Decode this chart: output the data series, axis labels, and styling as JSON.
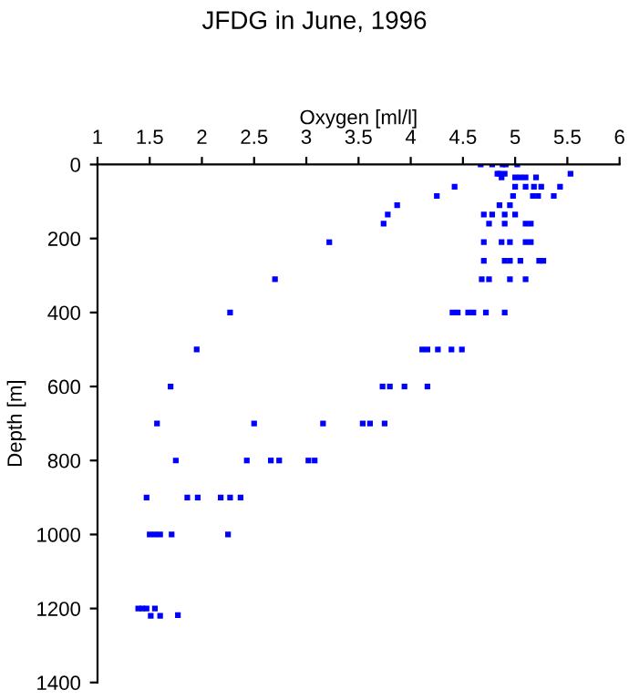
{
  "chart_data": {
    "type": "scatter",
    "title": "JFDG in June, 1996",
    "xlabel": "Oxygen [ml/l]",
    "ylabel": "Depth [m]",
    "xlim": [
      1,
      6
    ],
    "xticks": [
      1,
      1.5,
      2,
      2.5,
      3,
      3.5,
      4,
      4.5,
      5,
      5.5,
      6
    ],
    "ylim": [
      1400,
      0
    ],
    "yticks": [
      0,
      200,
      400,
      600,
      800,
      1000,
      1200,
      1400
    ],
    "grid": false,
    "marker": "square",
    "series": [
      {
        "color": "#0000ff",
        "x": [
          4.67,
          4.78,
          4.88,
          4.91,
          5.02,
          4.83,
          4.85,
          4.9,
          5.53,
          4.87,
          5.0,
          5.05,
          5.1,
          5.2,
          4.42,
          5.0,
          5.1,
          5.18,
          5.25,
          5.43,
          4.25,
          4.98,
          5.17,
          5.22,
          5.37,
          3.87,
          4.85,
          4.95,
          3.78,
          4.7,
          4.78,
          4.9,
          5.0,
          3.74,
          4.75,
          4.9,
          5.1,
          5.15,
          3.22,
          4.7,
          4.87,
          4.95,
          5.1,
          5.15,
          4.7,
          4.9,
          4.95,
          5.05,
          5.23,
          5.27,
          2.7,
          4.68,
          4.75,
          4.95,
          5.1,
          2.27,
          4.4,
          4.45,
          4.55,
          4.6,
          4.72,
          4.9,
          1.95,
          4.11,
          4.16,
          4.26,
          4.39,
          4.49,
          1.7,
          3.73,
          3.8,
          3.94,
          4.16,
          1.57,
          2.5,
          3.16,
          3.54,
          3.61,
          3.75,
          1.75,
          2.43,
          2.66,
          2.74,
          3.02,
          3.08,
          1.47,
          1.86,
          1.96,
          2.18,
          2.27,
          2.37,
          1.5,
          1.55,
          1.6,
          1.71,
          2.25,
          1.39,
          1.43,
          1.47,
          1.55,
          1.51,
          1.6,
          1.77
        ],
        "values": [
          0,
          0,
          0,
          0,
          0,
          25,
          25,
          25,
          25,
          35,
          35,
          35,
          35,
          35,
          60,
          60,
          60,
          60,
          60,
          60,
          85,
          85,
          85,
          85,
          85,
          110,
          110,
          110,
          135,
          135,
          135,
          135,
          135,
          160,
          160,
          160,
          160,
          160,
          210,
          210,
          210,
          210,
          210,
          210,
          260,
          260,
          260,
          260,
          260,
          260,
          310,
          310,
          310,
          310,
          310,
          400,
          400,
          400,
          400,
          400,
          400,
          400,
          500,
          500,
          500,
          500,
          500,
          500,
          600,
          600,
          600,
          600,
          600,
          700,
          700,
          700,
          700,
          700,
          700,
          800,
          800,
          800,
          800,
          800,
          800,
          900,
          900,
          900,
          900,
          900,
          900,
          1000,
          1000,
          1000,
          1000,
          1000,
          1200,
          1200,
          1200,
          1200,
          1220,
          1220,
          1218
        ]
      }
    ]
  }
}
